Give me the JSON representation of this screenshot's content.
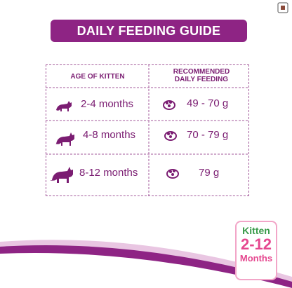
{
  "header": {
    "title": "DAILY FEEDING GUIDE"
  },
  "table": {
    "headers": [
      "AGE OF KITTEN",
      "RECOMMENDED DAILY FEEDING"
    ],
    "rows": [
      [
        "2-4 months",
        "49 - 70 g"
      ],
      [
        "4-8 months",
        "70 - 79 g"
      ],
      [
        "8-12 months",
        "79 g"
      ]
    ]
  },
  "badge": {
    "brand": "Kitten",
    "age": "2-12",
    "unit": "Months"
  }
}
